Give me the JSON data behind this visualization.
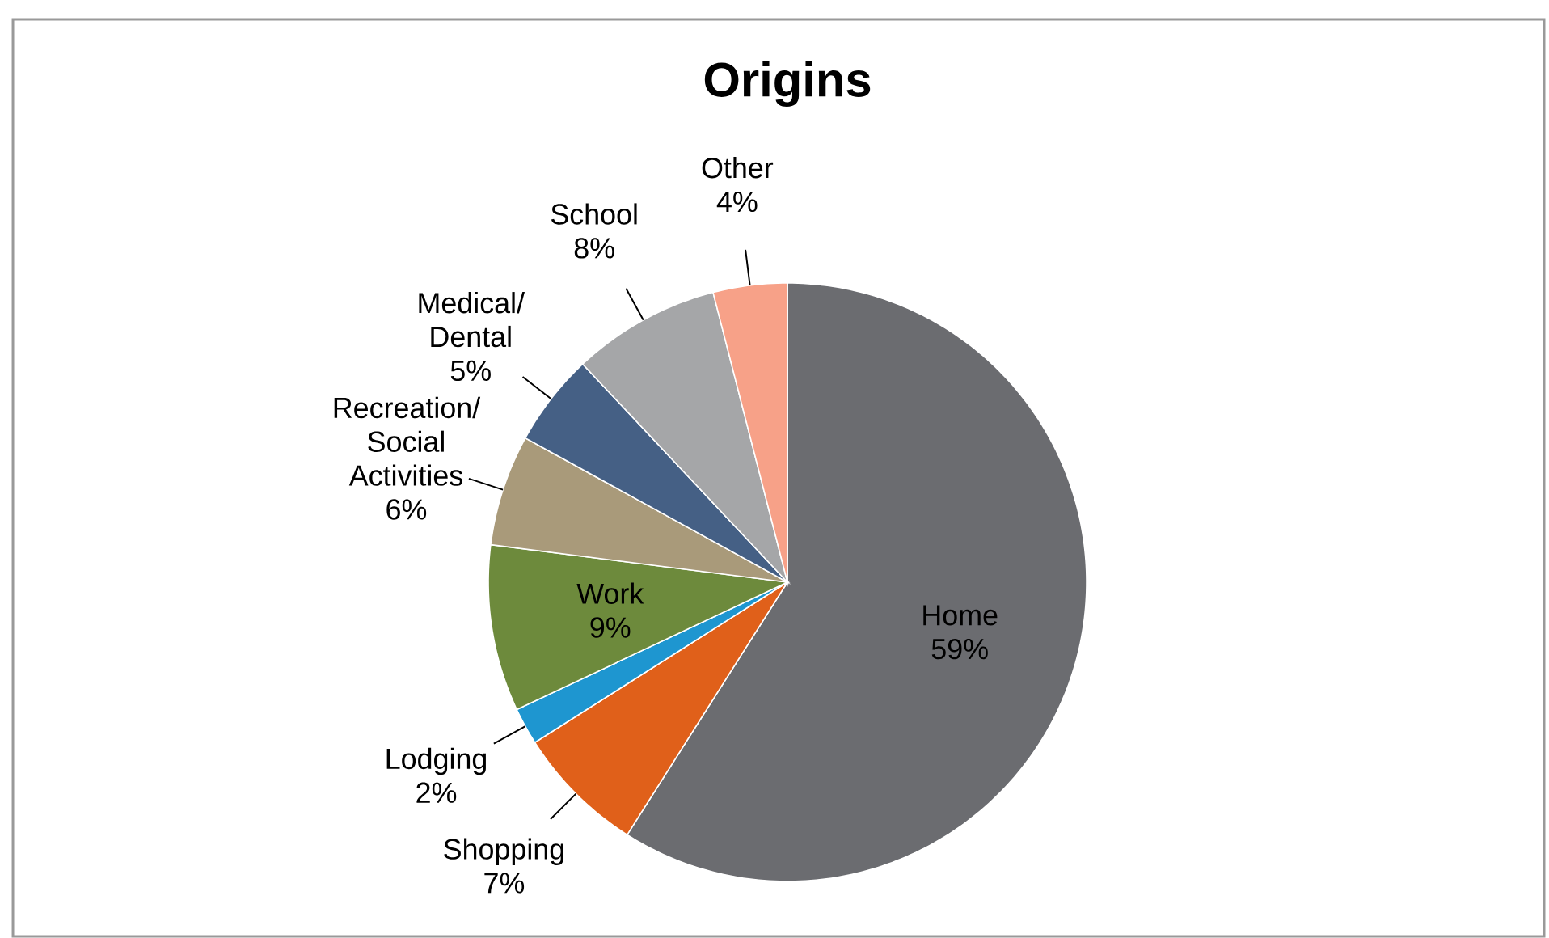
{
  "chart_data": {
    "type": "pie",
    "title": "Origins",
    "categories": [
      "Home",
      "Shopping",
      "Lodging",
      "Work",
      "Recreation/ Social Activities",
      "Medical/ Dental",
      "School",
      "Other"
    ],
    "values": [
      59,
      7,
      2,
      9,
      6,
      5,
      8,
      4
    ],
    "value_labels": [
      "59%",
      "7%",
      "2%",
      "9%",
      "6%",
      "5%",
      "8%",
      "4%"
    ],
    "colors": [
      "#6b6c70",
      "#e0601a",
      "#1e96d0",
      "#6d8a3c",
      "#a99a7a",
      "#456085",
      "#a5a6a8",
      "#f7a188"
    ]
  }
}
